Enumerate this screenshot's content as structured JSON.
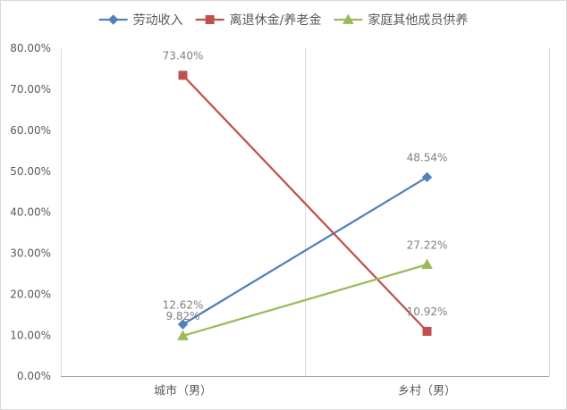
{
  "chart_data": {
    "type": "line",
    "title": "",
    "xlabel": "",
    "ylabel": "",
    "categories": [
      "城市（男）",
      "乡村（男）"
    ],
    "series": [
      {
        "name": "劳动收入",
        "values": [
          12.62,
          48.54
        ],
        "labels": [
          "12.62%",
          "48.54%"
        ],
        "color": "#4F81BD",
        "marker": "diamond"
      },
      {
        "name": "离退休金/养老金",
        "values": [
          73.4,
          10.92
        ],
        "labels": [
          "73.40%",
          "10.92%"
        ],
        "color": "#C0504D",
        "marker": "square"
      },
      {
        "name": "家庭其他成员供养",
        "values": [
          9.82,
          27.22
        ],
        "labels": [
          "9.82%",
          "27.22%"
        ],
        "color": "#9BBB59",
        "marker": "triangle"
      }
    ],
    "ylim": [
      0,
      80
    ],
    "yticks": [
      0,
      10,
      20,
      30,
      40,
      50,
      60,
      70,
      80
    ],
    "ytick_labels": [
      "0.00%",
      "10.00%",
      "20.00%",
      "30.00%",
      "40.00%",
      "50.00%",
      "60.00%",
      "70.00%",
      "80.00%"
    ],
    "legend": "top",
    "grid": {
      "horizontal": false,
      "vertical": true
    }
  }
}
